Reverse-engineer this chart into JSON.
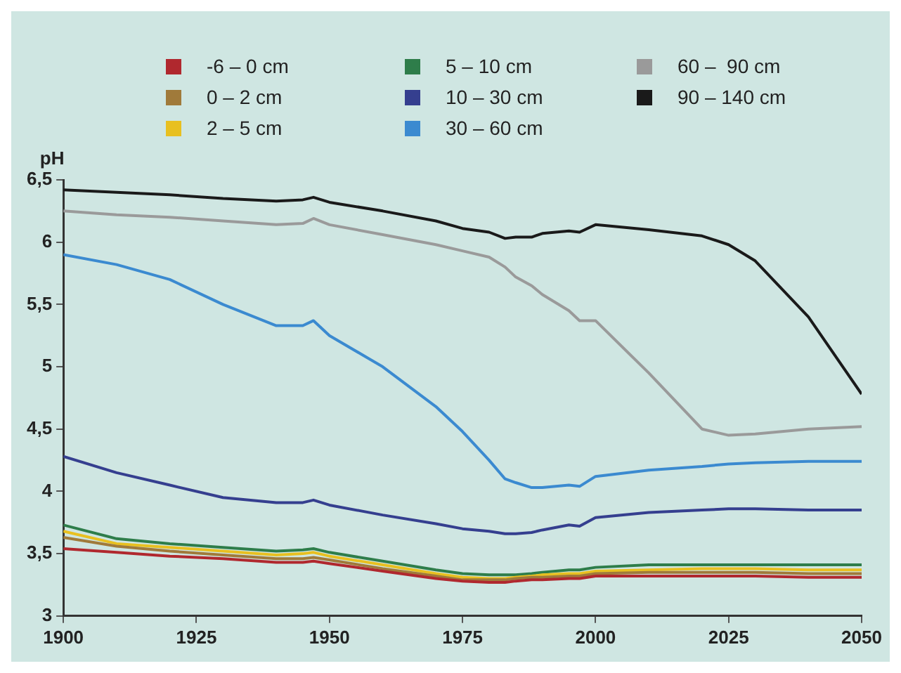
{
  "chart_data": {
    "type": "line",
    "ylabel": "pH",
    "legend": "top",
    "grid": false,
    "marker": "none",
    "line_style": "solid",
    "x": [
      1900,
      1910,
      1920,
      1930,
      1940,
      1945,
      1947,
      1950,
      1960,
      1970,
      1975,
      1980,
      1983,
      1985,
      1988,
      1990,
      1995,
      1997,
      2000,
      2010,
      2020,
      2025,
      2030,
      2040,
      2050
    ],
    "xlim": [
      1900,
      2050
    ],
    "xticks": [
      1900,
      1925,
      1950,
      1975,
      2000,
      2025,
      2050
    ],
    "ylim": [
      3,
      6.5
    ],
    "yticks": [
      3,
      {
        "value": 3.5,
        "label": "3,5"
      },
      4,
      {
        "value": 4.5,
        "label": "4,5"
      },
      5,
      {
        "value": 5.5,
        "label": "5,5"
      },
      6,
      {
        "value": 6.5,
        "label": "6,5"
      }
    ],
    "series": [
      {
        "name": "-6 – 0 cm",
        "color": "#b0282e",
        "values": [
          3.54,
          3.51,
          3.48,
          3.46,
          3.43,
          3.43,
          3.44,
          3.42,
          3.36,
          3.3,
          3.28,
          3.27,
          3.27,
          3.28,
          3.29,
          3.29,
          3.3,
          3.3,
          3.32,
          3.32,
          3.32,
          3.32,
          3.32,
          3.31,
          3.31
        ]
      },
      {
        "name": "0 – 2 cm",
        "color": "#a07a3a",
        "values": [
          3.63,
          3.56,
          3.52,
          3.49,
          3.46,
          3.46,
          3.47,
          3.45,
          3.38,
          3.32,
          3.29,
          3.29,
          3.29,
          3.3,
          3.31,
          3.31,
          3.32,
          3.32,
          3.34,
          3.35,
          3.35,
          3.35,
          3.35,
          3.34,
          3.34
        ]
      },
      {
        "name": "2 – 5 cm",
        "color": "#e8c020",
        "values": [
          3.68,
          3.58,
          3.55,
          3.52,
          3.49,
          3.5,
          3.51,
          3.48,
          3.41,
          3.34,
          3.31,
          3.3,
          3.3,
          3.31,
          3.32,
          3.33,
          3.34,
          3.34,
          3.36,
          3.37,
          3.38,
          3.38,
          3.38,
          3.37,
          3.37
        ]
      },
      {
        "name": "5 – 10 cm",
        "color": "#2e7d4a",
        "values": [
          3.73,
          3.62,
          3.58,
          3.55,
          3.52,
          3.53,
          3.54,
          3.51,
          3.44,
          3.37,
          3.34,
          3.33,
          3.33,
          3.33,
          3.34,
          3.35,
          3.37,
          3.37,
          3.39,
          3.41,
          3.41,
          3.41,
          3.41,
          3.41,
          3.41
        ]
      },
      {
        "name": "10 – 30 cm",
        "color": "#353f8f",
        "values": [
          4.28,
          4.15,
          4.05,
          3.95,
          3.91,
          3.91,
          3.93,
          3.89,
          3.81,
          3.74,
          3.7,
          3.68,
          3.66,
          3.66,
          3.67,
          3.69,
          3.73,
          3.72,
          3.79,
          3.83,
          3.85,
          3.86,
          3.86,
          3.85,
          3.85
        ]
      },
      {
        "name": "30 – 60 cm",
        "color": "#3b8ad0",
        "values": [
          5.9,
          5.82,
          5.7,
          5.5,
          5.33,
          5.33,
          5.37,
          5.25,
          5.0,
          4.68,
          4.48,
          4.25,
          4.1,
          4.07,
          4.03,
          4.03,
          4.05,
          4.04,
          4.12,
          4.17,
          4.2,
          4.22,
          4.23,
          4.24,
          4.24
        ]
      },
      {
        "name": "60 –  90 cm",
        "color": "#9a9a9a",
        "values": [
          6.25,
          6.22,
          6.2,
          6.17,
          6.14,
          6.15,
          6.19,
          6.14,
          6.06,
          5.98,
          5.93,
          5.88,
          5.8,
          5.72,
          5.65,
          5.58,
          5.45,
          5.37,
          5.37,
          4.95,
          4.5,
          4.45,
          4.46,
          4.5,
          4.52
        ]
      },
      {
        "name": "90 – 140 cm",
        "color": "#1a1a1a",
        "values": [
          6.42,
          6.4,
          6.38,
          6.35,
          6.33,
          6.34,
          6.36,
          6.32,
          6.25,
          6.17,
          6.11,
          6.08,
          6.03,
          6.04,
          6.04,
          6.07,
          6.09,
          6.08,
          6.14,
          6.1,
          6.05,
          5.98,
          5.85,
          5.4,
          4.78
        ]
      }
    ]
  }
}
